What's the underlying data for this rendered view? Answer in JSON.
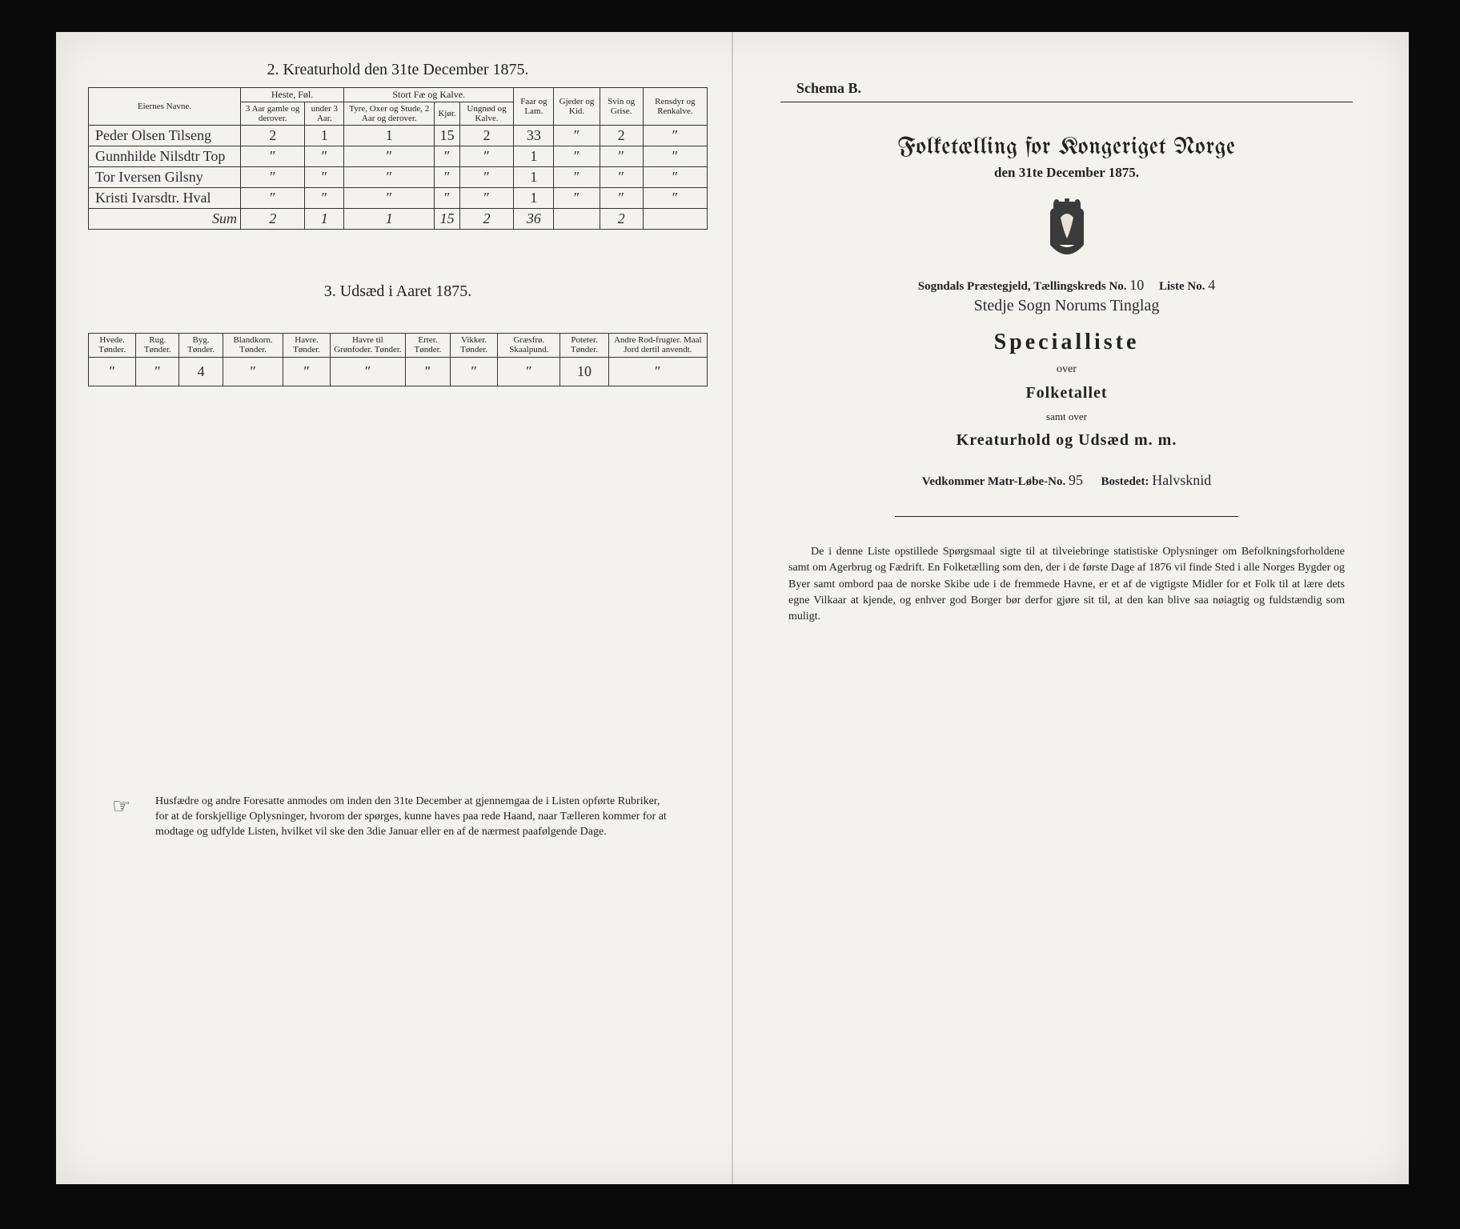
{
  "colors": {
    "paper": "#f4f2ec",
    "ink": "#222222",
    "border": "#333333",
    "background": "#0a0a0a"
  },
  "left": {
    "section2_title": "2.  Kreaturhold den 31te December 1875.",
    "table2": {
      "col_name": "Eiernes Navne.",
      "grp_heste": "Heste, Føl.",
      "grp_storfae": "Stort Fæ og Kalve.",
      "col_heste_a": "3 Aar gamle og derover.",
      "col_heste_b": "under 3 Aar.",
      "col_stor_a": "Tyre, Oxer og Stude, 2 Aar og derover.",
      "col_stor_b": "Kjør.",
      "col_stor_c": "Ungnød og Kalve.",
      "col_faar": "Faar og Lam.",
      "col_gjeder": "Gjeder og Kid.",
      "col_svin": "Svin og Grise.",
      "col_rensdyr": "Rensdyr og Renkalve.",
      "rows": [
        {
          "name": "Peder Olsen Tilseng",
          "c": [
            "2",
            "1",
            "1",
            "15",
            "2",
            "33",
            "″",
            "2",
            "″"
          ]
        },
        {
          "name": "Gunnhilde Nilsdtr Top",
          "c": [
            "″",
            "″",
            "″",
            "″",
            "″",
            "1",
            "″",
            "″",
            "″"
          ]
        },
        {
          "name": "Tor Iversen Gilsny",
          "c": [
            "″",
            "″",
            "″",
            "″",
            "″",
            "1",
            "″",
            "″",
            "″"
          ]
        },
        {
          "name": "Kristi Ivarsdtr. Hval",
          "c": [
            "″",
            "″",
            "″",
            "″",
            "″",
            "1",
            "″",
            "″",
            "″"
          ]
        }
      ],
      "sum_label": "Sum",
      "sum": [
        "2",
        "1",
        "1",
        "15",
        "2",
        "36",
        "",
        "2",
        ""
      ]
    },
    "section3_title": "3.  Udsæd i Aaret 1875.",
    "table3": {
      "headers": [
        "Hvede. Tønder.",
        "Rug. Tønder.",
        "Byg. Tønder.",
        "Blandkorn. Tønder.",
        "Havre. Tønder.",
        "Havre til Grønfoder. Tønder.",
        "Erter. Tønder.",
        "Vikker. Tønder.",
        "Græsfrø. Skaalpund.",
        "Poteter. Tønder.",
        "Andre Rod-frugter. Maal Jord dertil anvendt."
      ],
      "row": [
        "″",
        "″",
        "4",
        "″",
        "″",
        "″",
        "″",
        "″",
        "″",
        "10",
        "″"
      ]
    },
    "footnote": "Husfædre og andre Foresatte anmodes om inden den 31te December at gjennemgaa de i Listen opførte Rubriker, for at de forskjellige Oplysninger, hvorom der spørges, kunne haves paa rede Haand, naar Tælleren kommer for at modtage og udfylde Listen, hvilket vil ske den 3die Januar eller en af de nærmest paafølgende Dage."
  },
  "right": {
    "schema": "Schema B.",
    "title": "Folketælling for Kongeriget Norge",
    "subtitle": "den 31te December 1875.",
    "line1_a": "Sogndals Præstegjeld, Tællingskreds No.",
    "line1_val1": "10",
    "line1_b": "Liste No.",
    "line1_val2": "4",
    "handwritten_line": "Stedje Sogn  Norums  Tinglag",
    "spec": "Specialliste",
    "over": "over",
    "folketallet": "Folketallet",
    "samt": "samt over",
    "kreatur": "Kreaturhold og Udsæd m. m.",
    "vedk_a": "Vedkommer Matr-Løbe-No.",
    "vedk_val": "95",
    "vedk_b": "Bostedet:",
    "vedk_val2": "Halvsknid",
    "paragraph": "De i denne Liste opstillede Spørgsmaal sigte til at tilveiebringe statistiske Oplysninger om Befolkningsforholdene samt om Agerbrug og Fædrift.  En Folketælling som den, der i de første Dage af 1876 vil finde Sted i alle Norges Bygder og Byer samt ombord paa de norske Skibe ude i de fremmede Havne, er et af de vigtigste Midler for et Folk til at lære dets egne Vilkaar at kjende, og enhver god Borger bør derfor gjøre sit til, at den kan blive saa nøiagtig og fuldstændig som muligt."
  }
}
